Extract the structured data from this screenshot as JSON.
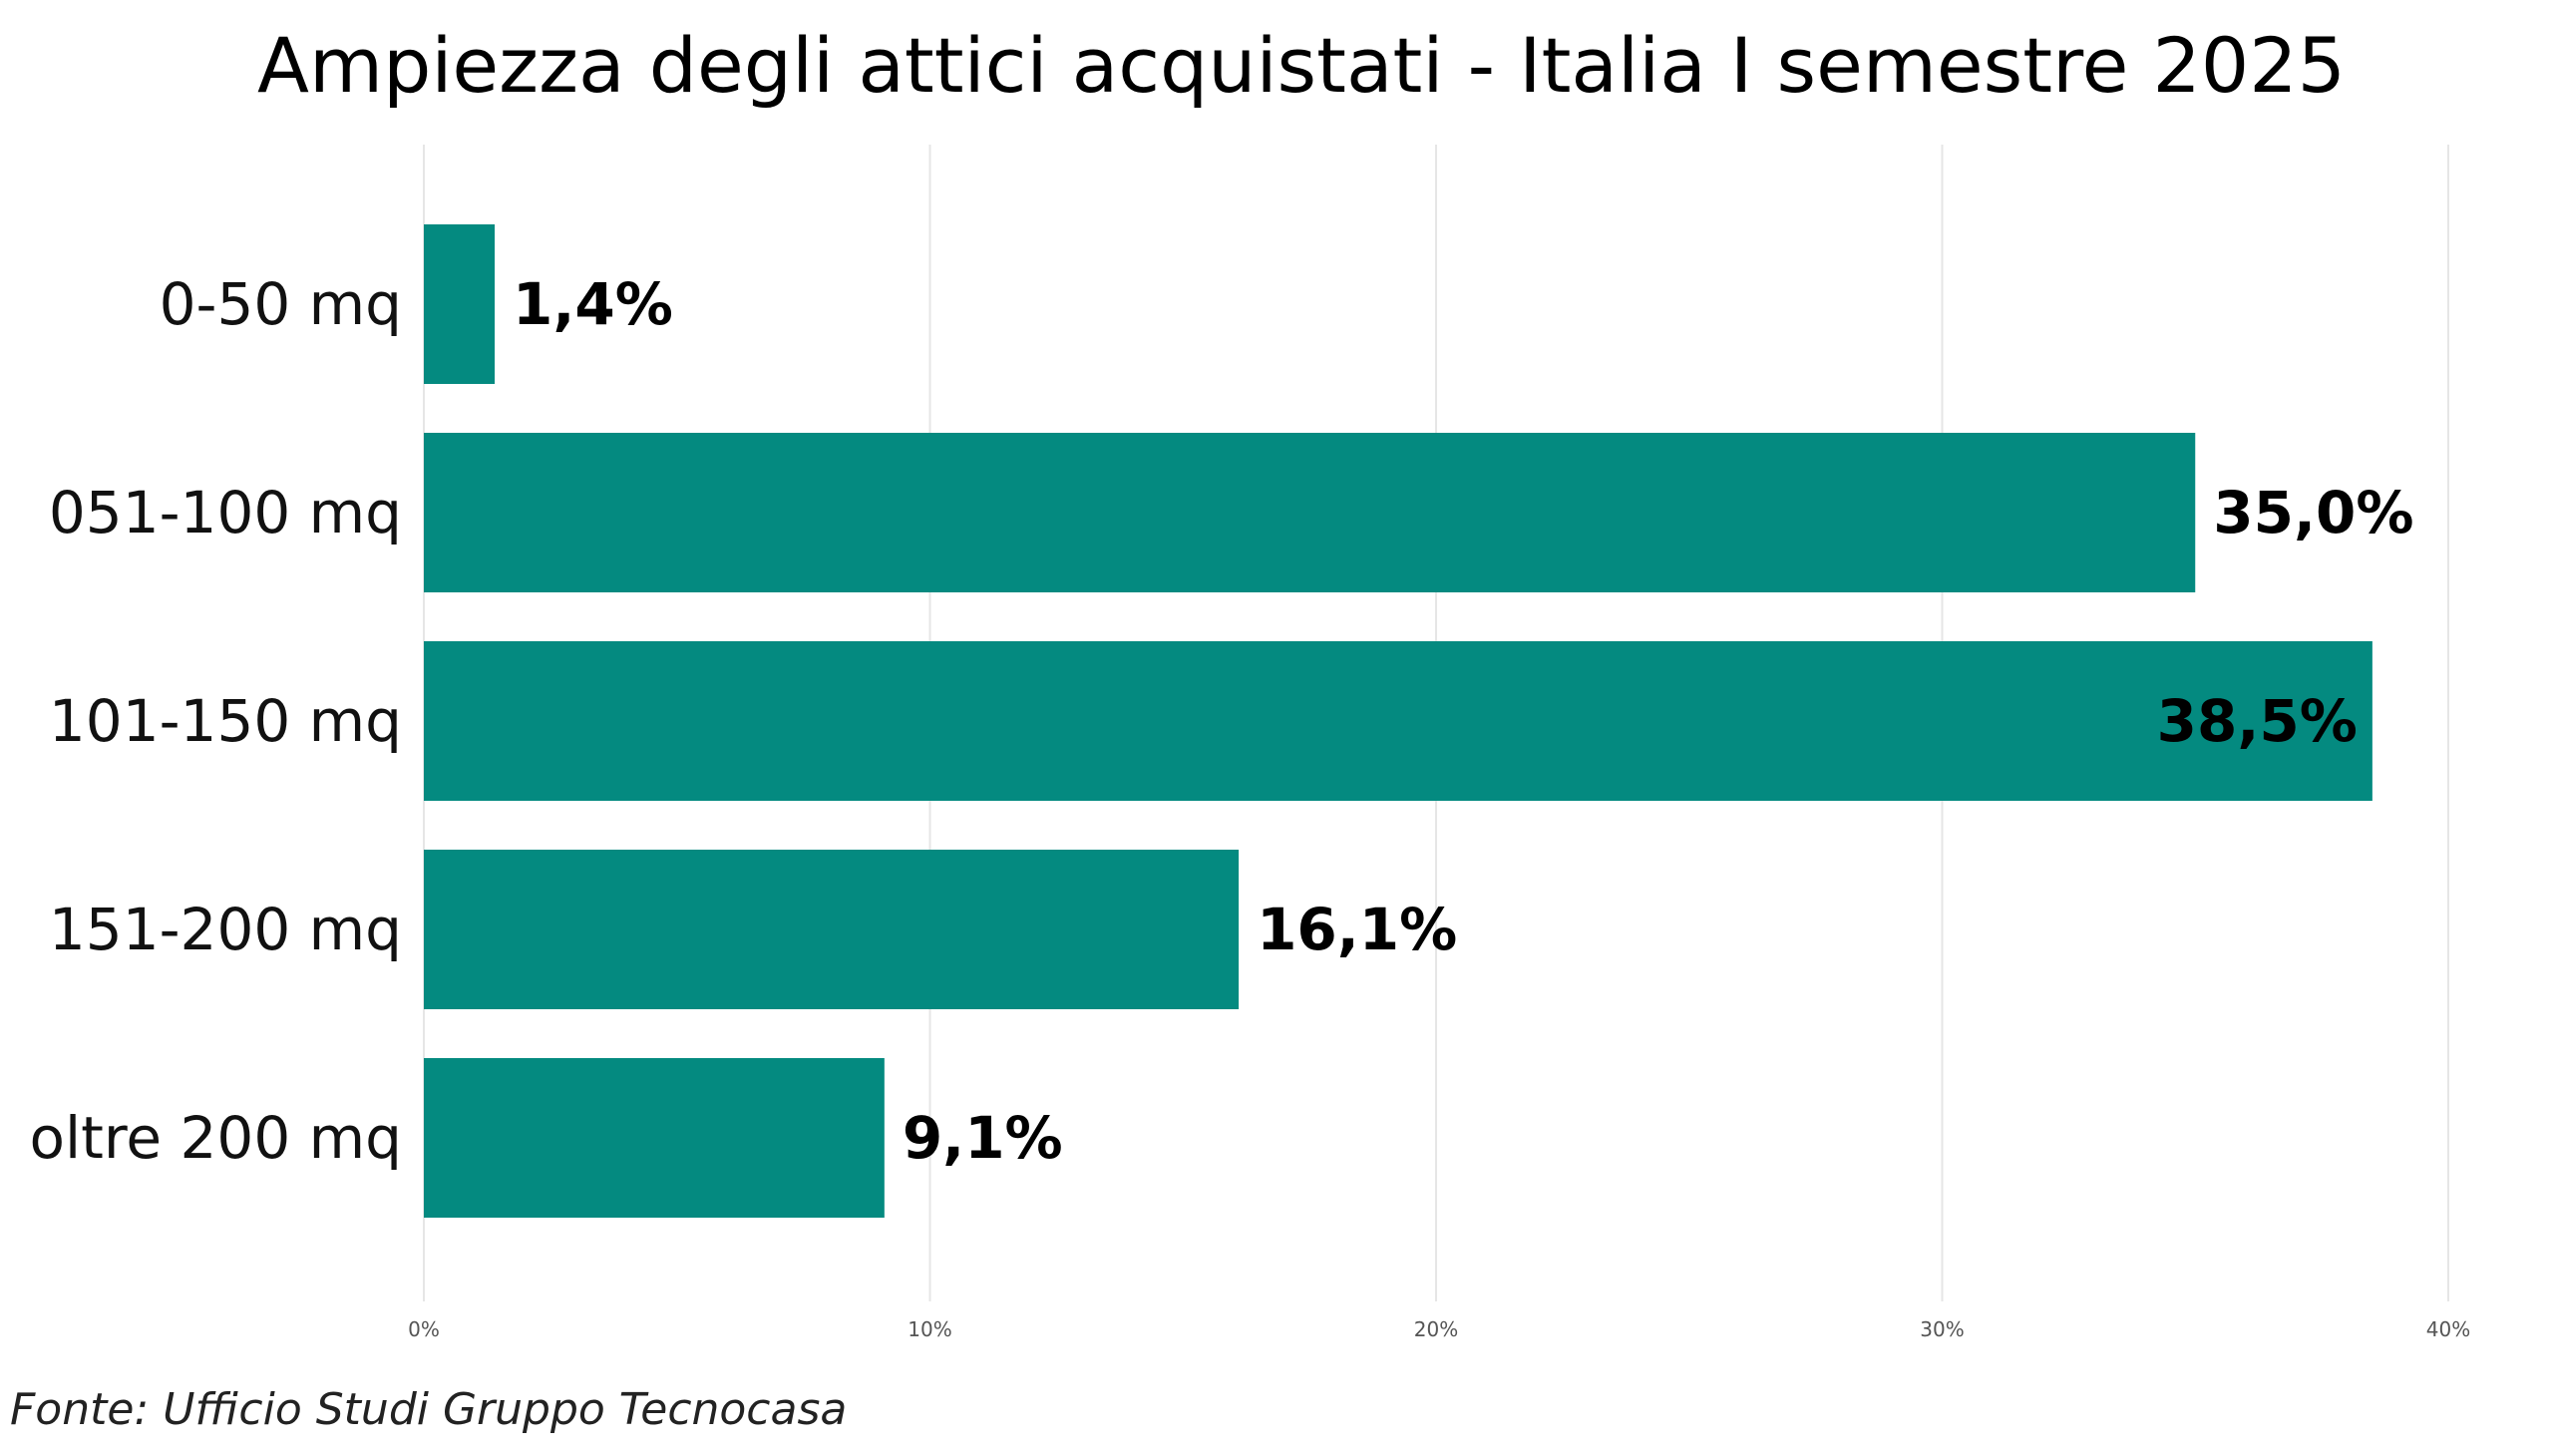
{
  "chart_data": {
    "type": "bar",
    "orientation": "horizontal",
    "title": "Ampiezza degli attici acquistati - Italia I semestre 2025",
    "categories": [
      "0-50 mq",
      "051-100 mq",
      "101-150 mq",
      "151-200 mq",
      "oltre 200 mq"
    ],
    "values": [
      1.4,
      35.0,
      38.5,
      16.1,
      9.1
    ],
    "data_labels": [
      "1,4%",
      "35,0%",
      "38,5%",
      "16,1%",
      "9,1%"
    ],
    "xlim": [
      0,
      40
    ],
    "x_ticks": [
      0,
      10,
      20,
      30,
      40
    ],
    "x_tick_labels": [
      "0%",
      "10%",
      "20%",
      "30%",
      "40%"
    ],
    "grid": "vertical",
    "legend": "none",
    "bar_color": "#048a80",
    "source": "Fonte: Ufficio Studi Gruppo Tecnocasa"
  }
}
